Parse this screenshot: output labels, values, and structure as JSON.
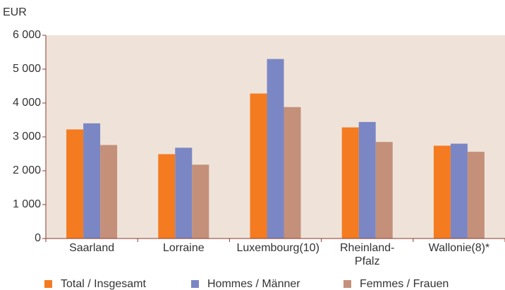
{
  "chart_data": {
    "type": "bar",
    "y_unit": "EUR",
    "categories": [
      "Saarland",
      "Lorraine",
      "Luxembourg(10)",
      "Rheinland-Pfalz",
      "Wallonie(8)*"
    ],
    "series": [
      {
        "name": "Total / Insgesamt",
        "color": "#f47b20",
        "values": [
          3220,
          2490,
          4280,
          3280,
          2740
        ]
      },
      {
        "name": "Hommes / Männer",
        "color": "#7b87c4",
        "values": [
          3400,
          2680,
          5300,
          3440,
          2800
        ]
      },
      {
        "name": "Femmes / Frauen",
        "color": "#c4907a",
        "values": [
          2760,
          2180,
          3880,
          2850,
          2560
        ]
      }
    ],
    "ylim": [
      0,
      6000
    ],
    "yticks": [
      0,
      {
        "value": 1000,
        "label": "1 000"
      },
      {
        "value": 2000,
        "label": "2 000"
      },
      {
        "value": 3000,
        "label": "3 000"
      },
      {
        "value": 4000,
        "label": "4 000"
      },
      {
        "value": 5000,
        "label": "5 000"
      },
      {
        "value": 6000,
        "label": "6 000"
      }
    ],
    "grid": false,
    "background": "#efe3d9",
    "legend": "bottom"
  }
}
